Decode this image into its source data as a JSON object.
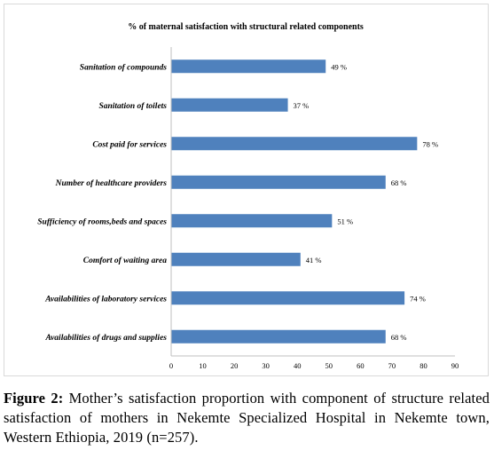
{
  "caption": {
    "label": "Figure 2:",
    "text": " Mother’s satisfaction proportion with component of structure related satisfaction of mothers in Nekemte Specialized Hospital in Nekemte town, Western Ethiopia, 2019 (n=257)."
  },
  "chart_data": {
    "type": "bar",
    "orientation": "horizontal",
    "title": "% of maternal satisfaction with structural related components",
    "categories": [
      "Sanitation of compounds",
      "Sanitation of toilets",
      "Cost paid for  services",
      "Number of healthcare providers",
      "Sufficiency of rooms,beds and spaces",
      "Comfort of waiting area",
      "Availabilities of laboratory services",
      "Availabilities of drugs and supplies"
    ],
    "values": [
      49,
      37,
      78,
      68,
      51,
      41,
      74,
      68
    ],
    "value_labels": [
      "49 %",
      "37 %",
      "78 %",
      "68 %",
      "51 %",
      "41 %",
      "74 %",
      "68 %"
    ],
    "xticks": [
      "0",
      "10",
      "20",
      "30",
      "40",
      "50",
      "60",
      "70",
      "80",
      "90"
    ],
    "xlim": [
      0,
      90
    ],
    "grid": false,
    "bar_color": "#4f81bd"
  }
}
